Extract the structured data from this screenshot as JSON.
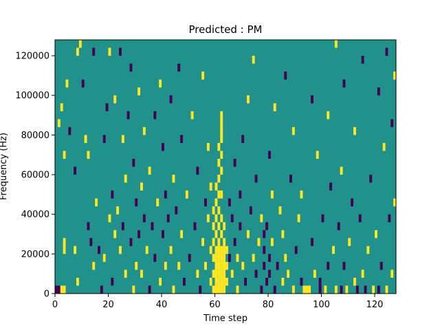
{
  "chart_data": {
    "type": "heatmap",
    "title": "Predicted : PM",
    "xlabel": "Time step",
    "ylabel": "Frequency (Hz)",
    "xlim": [
      0,
      128
    ],
    "ylim": [
      0,
      128000
    ],
    "x_ticks": [
      0,
      20,
      40,
      60,
      80,
      100,
      120
    ],
    "x_tick_labels": [
      "0",
      "20",
      "40",
      "60",
      "80",
      "100",
      "120"
    ],
    "y_ticks": [
      0,
      20000,
      40000,
      60000,
      80000,
      100000,
      120000
    ],
    "y_tick_labels": [
      "0",
      "20000",
      "40000",
      "60000",
      "80000",
      "100000",
      "120000"
    ],
    "n_time_steps": 128,
    "n_freq_bins": 32,
    "freq_bin_width": 4000,
    "colormap": {
      "-1": "#440154",
      "0": "#21918c",
      "1": "#fde725"
    },
    "background_value": 0,
    "cell_value_note": "Cells not listed are 0",
    "nonzero_cells": [
      {
        "t": 0,
        "f": 0,
        "v": -1
      },
      {
        "t": 1,
        "f": 0,
        "v": -1
      },
      {
        "t": 2,
        "f": 0,
        "v": 1
      },
      {
        "t": 3,
        "f": 0,
        "v": 1
      },
      {
        "t": 3,
        "f": 5,
        "v": 1
      },
      {
        "t": 3,
        "f": 6,
        "v": 1
      },
      {
        "t": 1,
        "f": 21,
        "v": 1
      },
      {
        "t": 2,
        "f": 23,
        "v": 1
      },
      {
        "t": 4,
        "f": 26,
        "v": 1
      },
      {
        "t": 3,
        "f": 17,
        "v": 1
      },
      {
        "t": 5,
        "f": 20,
        "v": -1
      },
      {
        "t": 7,
        "f": 5,
        "v": 1
      },
      {
        "t": 7,
        "f": 15,
        "v": -1
      },
      {
        "t": 8,
        "f": 1,
        "v": 1
      },
      {
        "t": 8,
        "f": 30,
        "v": 1
      },
      {
        "t": 9,
        "f": 31,
        "v": 1
      },
      {
        "t": 10,
        "f": 26,
        "v": -1
      },
      {
        "t": 11,
        "f": 19,
        "v": 1
      },
      {
        "t": 12,
        "f": 8,
        "v": -1
      },
      {
        "t": 12,
        "f": 17,
        "v": 1
      },
      {
        "t": 13,
        "f": 6,
        "v": -1
      },
      {
        "t": 14,
        "f": 3,
        "v": 1
      },
      {
        "t": 14,
        "f": 30,
        "v": -1
      },
      {
        "t": 15,
        "f": 11,
        "v": 1
      },
      {
        "t": 16,
        "f": 5,
        "v": -1
      },
      {
        "t": 17,
        "f": 0,
        "v": -1
      },
      {
        "t": 18,
        "f": 4,
        "v": 1
      },
      {
        "t": 18,
        "f": 19,
        "v": -1
      },
      {
        "t": 19,
        "f": 23,
        "v": -1
      },
      {
        "t": 20,
        "f": 9,
        "v": 1
      },
      {
        "t": 20,
        "f": 30,
        "v": 1
      },
      {
        "t": 21,
        "f": 1,
        "v": -1
      },
      {
        "t": 21,
        "f": 12,
        "v": -1
      },
      {
        "t": 22,
        "f": 7,
        "v": 1
      },
      {
        "t": 22,
        "f": 24,
        "v": 1
      },
      {
        "t": 23,
        "f": 10,
        "v": 1
      },
      {
        "t": 24,
        "f": 5,
        "v": 1
      },
      {
        "t": 24,
        "f": 30,
        "v": -1
      },
      {
        "t": 25,
        "f": 8,
        "v": -1
      },
      {
        "t": 25,
        "f": 19,
        "v": 1
      },
      {
        "t": 26,
        "f": 2,
        "v": 1
      },
      {
        "t": 26,
        "f": 14,
        "v": 1
      },
      {
        "t": 27,
        "f": 22,
        "v": -1
      },
      {
        "t": 28,
        "f": 6,
        "v": -1
      },
      {
        "t": 28,
        "f": 28,
        "v": -1
      },
      {
        "t": 29,
        "f": 0,
        "v": 1
      },
      {
        "t": 29,
        "f": 16,
        "v": -1
      },
      {
        "t": 30,
        "f": 3,
        "v": 1
      },
      {
        "t": 30,
        "f": 11,
        "v": -1
      },
      {
        "t": 31,
        "f": 7,
        "v": -1
      },
      {
        "t": 31,
        "f": 25,
        "v": 1
      },
      {
        "t": 32,
        "f": 2,
        "v": 1
      },
      {
        "t": 32,
        "f": 13,
        "v": 1
      },
      {
        "t": 33,
        "f": 9,
        "v": -1
      },
      {
        "t": 33,
        "f": 20,
        "v": 1
      },
      {
        "t": 34,
        "f": 5,
        "v": 1
      },
      {
        "t": 35,
        "f": 0,
        "v": -1
      },
      {
        "t": 35,
        "f": 15,
        "v": 1
      },
      {
        "t": 36,
        "f": 8,
        "v": -1
      },
      {
        "t": 37,
        "f": 4,
        "v": -1
      },
      {
        "t": 37,
        "f": 22,
        "v": -1
      },
      {
        "t": 38,
        "f": 11,
        "v": 1
      },
      {
        "t": 39,
        "f": 1,
        "v": 1
      },
      {
        "t": 39,
        "f": 26,
        "v": 1
      },
      {
        "t": 40,
        "f": 7,
        "v": -1
      },
      {
        "t": 40,
        "f": 18,
        "v": -1
      },
      {
        "t": 41,
        "f": 3,
        "v": 1
      },
      {
        "t": 41,
        "f": 12,
        "v": -1
      },
      {
        "t": 42,
        "f": 9,
        "v": -1
      },
      {
        "t": 43,
        "f": 5,
        "v": 1
      },
      {
        "t": 43,
        "f": 24,
        "v": -1
      },
      {
        "t": 44,
        "f": 0,
        "v": 1
      },
      {
        "t": 44,
        "f": 14,
        "v": 1
      },
      {
        "t": 45,
        "f": 10,
        "v": -1
      },
      {
        "t": 46,
        "f": 3,
        "v": 1
      },
      {
        "t": 46,
        "f": 28,
        "v": -1
      },
      {
        "t": 47,
        "f": 7,
        "v": 1
      },
      {
        "t": 47,
        "f": 19,
        "v": -1
      },
      {
        "t": 48,
        "f": 1,
        "v": -1
      },
      {
        "t": 49,
        "f": 12,
        "v": 1
      },
      {
        "t": 50,
        "f": 4,
        "v": -1
      },
      {
        "t": 51,
        "f": 22,
        "v": 1
      },
      {
        "t": 52,
        "f": 8,
        "v": -1
      },
      {
        "t": 53,
        "f": 2,
        "v": 1
      },
      {
        "t": 53,
        "f": 15,
        "v": -1
      },
      {
        "t": 54,
        "f": 0,
        "v": -1
      },
      {
        "t": 55,
        "f": 6,
        "v": 1
      },
      {
        "t": 55,
        "f": 27,
        "v": 1
      },
      {
        "t": 56,
        "f": 3,
        "v": 1
      },
      {
        "t": 56,
        "f": 11,
        "v": -1
      },
      {
        "t": 57,
        "f": 9,
        "v": 1
      },
      {
        "t": 57,
        "f": 18,
        "v": 1
      },
      {
        "t": 58,
        "f": 1,
        "v": 1
      },
      {
        "t": 58,
        "f": 5,
        "v": 1
      },
      {
        "t": 58,
        "f": 13,
        "v": 1
      },
      {
        "t": 59,
        "f": 0,
        "v": 1
      },
      {
        "t": 59,
        "f": 2,
        "v": 1
      },
      {
        "t": 59,
        "f": 4,
        "v": 1
      },
      {
        "t": 59,
        "f": 6,
        "v": 1
      },
      {
        "t": 59,
        "f": 8,
        "v": 1
      },
      {
        "t": 59,
        "f": 10,
        "v": 1
      },
      {
        "t": 60,
        "f": 0,
        "v": 1
      },
      {
        "t": 60,
        "f": 1,
        "v": 1
      },
      {
        "t": 60,
        "f": 2,
        "v": 1
      },
      {
        "t": 60,
        "f": 3,
        "v": 1
      },
      {
        "t": 60,
        "f": 4,
        "v": 1
      },
      {
        "t": 60,
        "f": 5,
        "v": 1
      },
      {
        "t": 60,
        "f": 7,
        "v": 1
      },
      {
        "t": 60,
        "f": 9,
        "v": 1
      },
      {
        "t": 60,
        "f": 11,
        "v": 1
      },
      {
        "t": 60,
        "f": 13,
        "v": 1
      },
      {
        "t": 61,
        "f": 0,
        "v": 1
      },
      {
        "t": 61,
        "f": 1,
        "v": 1
      },
      {
        "t": 61,
        "f": 2,
        "v": 1
      },
      {
        "t": 61,
        "f": 3,
        "v": 1
      },
      {
        "t": 61,
        "f": 4,
        "v": 1
      },
      {
        "t": 61,
        "f": 5,
        "v": 1
      },
      {
        "t": 61,
        "f": 6,
        "v": 1
      },
      {
        "t": 61,
        "f": 8,
        "v": 1
      },
      {
        "t": 61,
        "f": 10,
        "v": 1
      },
      {
        "t": 61,
        "f": 12,
        "v": 1
      },
      {
        "t": 61,
        "f": 14,
        "v": 1
      },
      {
        "t": 61,
        "f": 16,
        "v": 1
      },
      {
        "t": 61,
        "f": 18,
        "v": 1
      },
      {
        "t": 62,
        "f": 0,
        "v": 1
      },
      {
        "t": 62,
        "f": 1,
        "v": 1
      },
      {
        "t": 62,
        "f": 2,
        "v": 1
      },
      {
        "t": 62,
        "f": 3,
        "v": 1
      },
      {
        "t": 62,
        "f": 4,
        "v": 1
      },
      {
        "t": 62,
        "f": 5,
        "v": 1
      },
      {
        "t": 62,
        "f": 7,
        "v": 1
      },
      {
        "t": 62,
        "f": 9,
        "v": 1
      },
      {
        "t": 62,
        "f": 12,
        "v": 1
      },
      {
        "t": 62,
        "f": 15,
        "v": 1
      },
      {
        "t": 62,
        "f": 17,
        "v": 1
      },
      {
        "t": 62,
        "f": 19,
        "v": 1
      },
      {
        "t": 62,
        "f": 20,
        "v": 1
      },
      {
        "t": 62,
        "f": 21,
        "v": 1
      },
      {
        "t": 62,
        "f": 22,
        "v": 1
      },
      {
        "t": 63,
        "f": 0,
        "v": 1
      },
      {
        "t": 63,
        "f": 1,
        "v": 1
      },
      {
        "t": 63,
        "f": 2,
        "v": 1
      },
      {
        "t": 63,
        "f": 3,
        "v": 1
      },
      {
        "t": 63,
        "f": 4,
        "v": 1
      },
      {
        "t": 63,
        "f": 5,
        "v": 1
      },
      {
        "t": 63,
        "f": 6,
        "v": 1
      },
      {
        "t": 63,
        "f": 8,
        "v": 1
      },
      {
        "t": 64,
        "f": 1,
        "v": 1
      },
      {
        "t": 64,
        "f": 3,
        "v": 1
      },
      {
        "t": 64,
        "f": 5,
        "v": 1
      },
      {
        "t": 65,
        "f": 4,
        "v": -1
      },
      {
        "t": 65,
        "f": 11,
        "v": -1
      },
      {
        "t": 66,
        "f": 2,
        "v": 1
      },
      {
        "t": 66,
        "f": 9,
        "v": -1
      },
      {
        "t": 67,
        "f": 6,
        "v": -1
      },
      {
        "t": 67,
        "f": 16,
        "v": -1
      },
      {
        "t": 68,
        "f": 0,
        "v": 1
      },
      {
        "t": 68,
        "f": 4,
        "v": 1
      },
      {
        "t": 69,
        "f": 8,
        "v": -1
      },
      {
        "t": 69,
        "f": 12,
        "v": -1
      },
      {
        "t": 70,
        "f": 3,
        "v": 1
      },
      {
        "t": 70,
        "f": 19,
        "v": -1
      },
      {
        "t": 71,
        "f": 1,
        "v": -1
      },
      {
        "t": 72,
        "f": 7,
        "v": 1
      },
      {
        "t": 72,
        "f": 24,
        "v": 1
      },
      {
        "t": 73,
        "f": 10,
        "v": -1
      },
      {
        "t": 74,
        "f": 4,
        "v": 1
      },
      {
        "t": 74,
        "f": 29,
        "v": 1
      },
      {
        "t": 75,
        "f": 2,
        "v": -1
      },
      {
        "t": 75,
        "f": 14,
        "v": -1
      },
      {
        "t": 76,
        "f": 6,
        "v": 1
      },
      {
        "t": 77,
        "f": 0,
        "v": -1
      },
      {
        "t": 77,
        "f": 9,
        "v": 1
      },
      {
        "t": 78,
        "f": 3,
        "v": -1
      },
      {
        "t": 78,
        "f": 5,
        "v": -1
      },
      {
        "t": 78,
        "f": 7,
        "v": -1
      },
      {
        "t": 79,
        "f": 1,
        "v": -1
      },
      {
        "t": 79,
        "f": 8,
        "v": -1
      },
      {
        "t": 80,
        "f": 2,
        "v": -1
      },
      {
        "t": 80,
        "f": 4,
        "v": -1
      },
      {
        "t": 80,
        "f": 17,
        "v": -1
      },
      {
        "t": 81,
        "f": 6,
        "v": 1
      },
      {
        "t": 81,
        "f": 12,
        "v": 1
      },
      {
        "t": 82,
        "f": 0,
        "v": -1
      },
      {
        "t": 82,
        "f": 23,
        "v": 1
      },
      {
        "t": 83,
        "f": 3,
        "v": -1
      },
      {
        "t": 84,
        "f": 10,
        "v": 1
      },
      {
        "t": 85,
        "f": 1,
        "v": 1
      },
      {
        "t": 85,
        "f": 7,
        "v": 1
      },
      {
        "t": 86,
        "f": 4,
        "v": 1
      },
      {
        "t": 86,
        "f": 27,
        "v": -1
      },
      {
        "t": 87,
        "f": 2,
        "v": 1
      },
      {
        "t": 88,
        "f": 14,
        "v": -1
      },
      {
        "t": 89,
        "f": 0,
        "v": 1
      },
      {
        "t": 89,
        "f": 20,
        "v": 1
      },
      {
        "t": 90,
        "f": 5,
        "v": -1
      },
      {
        "t": 91,
        "f": 9,
        "v": 1
      },
      {
        "t": 92,
        "f": 1,
        "v": -1
      },
      {
        "t": 92,
        "f": 12,
        "v": 1
      },
      {
        "t": 93,
        "f": 0,
        "v": 1
      },
      {
        "t": 94,
        "f": 0,
        "v": 1
      },
      {
        "t": 95,
        "f": 0,
        "v": 1
      },
      {
        "t": 96,
        "f": 6,
        "v": -1
      },
      {
        "t": 96,
        "f": 24,
        "v": -1
      },
      {
        "t": 97,
        "f": 2,
        "v": 1
      },
      {
        "t": 98,
        "f": 17,
        "v": 1
      },
      {
        "t": 99,
        "f": 0,
        "v": -1
      },
      {
        "t": 99,
        "f": 1,
        "v": -1
      },
      {
        "t": 100,
        "f": 9,
        "v": -1
      },
      {
        "t": 101,
        "f": 0,
        "v": 1
      },
      {
        "t": 102,
        "f": 3,
        "v": -1
      },
      {
        "t": 102,
        "f": 22,
        "v": 1
      },
      {
        "t": 103,
        "f": 13,
        "v": -1
      },
      {
        "t": 104,
        "f": 5,
        "v": 1
      },
      {
        "t": 105,
        "f": 0,
        "v": 1
      },
      {
        "t": 105,
        "f": 31,
        "v": 1
      },
      {
        "t": 106,
        "f": 8,
        "v": -1
      },
      {
        "t": 107,
        "f": 0,
        "v": -1
      },
      {
        "t": 107,
        "f": 15,
        "v": 1
      },
      {
        "t": 108,
        "f": 3,
        "v": -1
      },
      {
        "t": 108,
        "f": 26,
        "v": -1
      },
      {
        "t": 109,
        "f": 0,
        "v": 1
      },
      {
        "t": 110,
        "f": 6,
        "v": 1
      },
      {
        "t": 111,
        "f": 11,
        "v": -1
      },
      {
        "t": 112,
        "f": 1,
        "v": 1
      },
      {
        "t": 112,
        "f": 20,
        "v": 1
      },
      {
        "t": 113,
        "f": 0,
        "v": -1
      },
      {
        "t": 114,
        "f": 9,
        "v": -1
      },
      {
        "t": 115,
        "f": 2,
        "v": 1
      },
      {
        "t": 115,
        "f": 29,
        "v": -1
      },
      {
        "t": 116,
        "f": 0,
        "v": -1
      },
      {
        "t": 117,
        "f": 5,
        "v": 1
      },
      {
        "t": 118,
        "f": 14,
        "v": -1
      },
      {
        "t": 119,
        "f": 0,
        "v": 1
      },
      {
        "t": 120,
        "f": 7,
        "v": 1
      },
      {
        "t": 121,
        "f": 0,
        "v": -1
      },
      {
        "t": 121,
        "f": 25,
        "v": -1
      },
      {
        "t": 122,
        "f": 3,
        "v": -1
      },
      {
        "t": 123,
        "f": 18,
        "v": 1
      },
      {
        "t": 124,
        "f": 0,
        "v": 1
      },
      {
        "t": 124,
        "f": 30,
        "v": -1
      },
      {
        "t": 125,
        "f": 9,
        "v": -1
      },
      {
        "t": 126,
        "f": 2,
        "v": 1
      },
      {
        "t": 126,
        "f": 21,
        "v": -1
      },
      {
        "t": 127,
        "f": 11,
        "v": 1
      },
      {
        "t": 127,
        "f": 27,
        "v": 1
      }
    ]
  }
}
